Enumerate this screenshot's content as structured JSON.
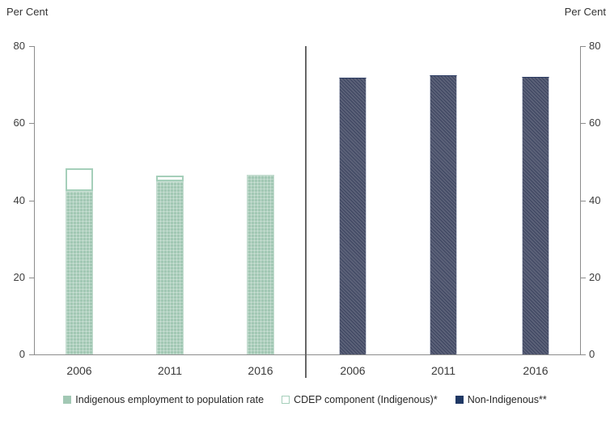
{
  "chart_data": {
    "type": "bar",
    "title": "",
    "categories": [
      "2006",
      "2011",
      "2016"
    ],
    "series": [
      {
        "name": "Indigenous employment to population rate",
        "panel": "left",
        "color": "#a2c8b4",
        "values": [
          42.5,
          45.0,
          46.6
        ]
      },
      {
        "name": "CDEP component (Indigenous)*",
        "panel": "left",
        "stacked_on": "Indigenous employment to population rate",
        "color": "#ffffff",
        "border_color": "#a5cfba",
        "values": [
          5.7,
          1.5,
          0
        ]
      },
      {
        "name": "Non-Indigenous**",
        "panel": "right",
        "color": "#5b6178",
        "legend_color": "#1f3864",
        "values": [
          71.9,
          72.4,
          72.1
        ]
      }
    ],
    "ylabel_left": "Per Cent",
    "ylabel_right": "Per Cent",
    "ylim": [
      0,
      80
    ],
    "yticks": [
      0,
      20,
      40,
      60,
      80
    ],
    "grid": false,
    "legend_position": "bottom",
    "divider_between_groups": true,
    "axis_color": "#8c8c8c"
  }
}
